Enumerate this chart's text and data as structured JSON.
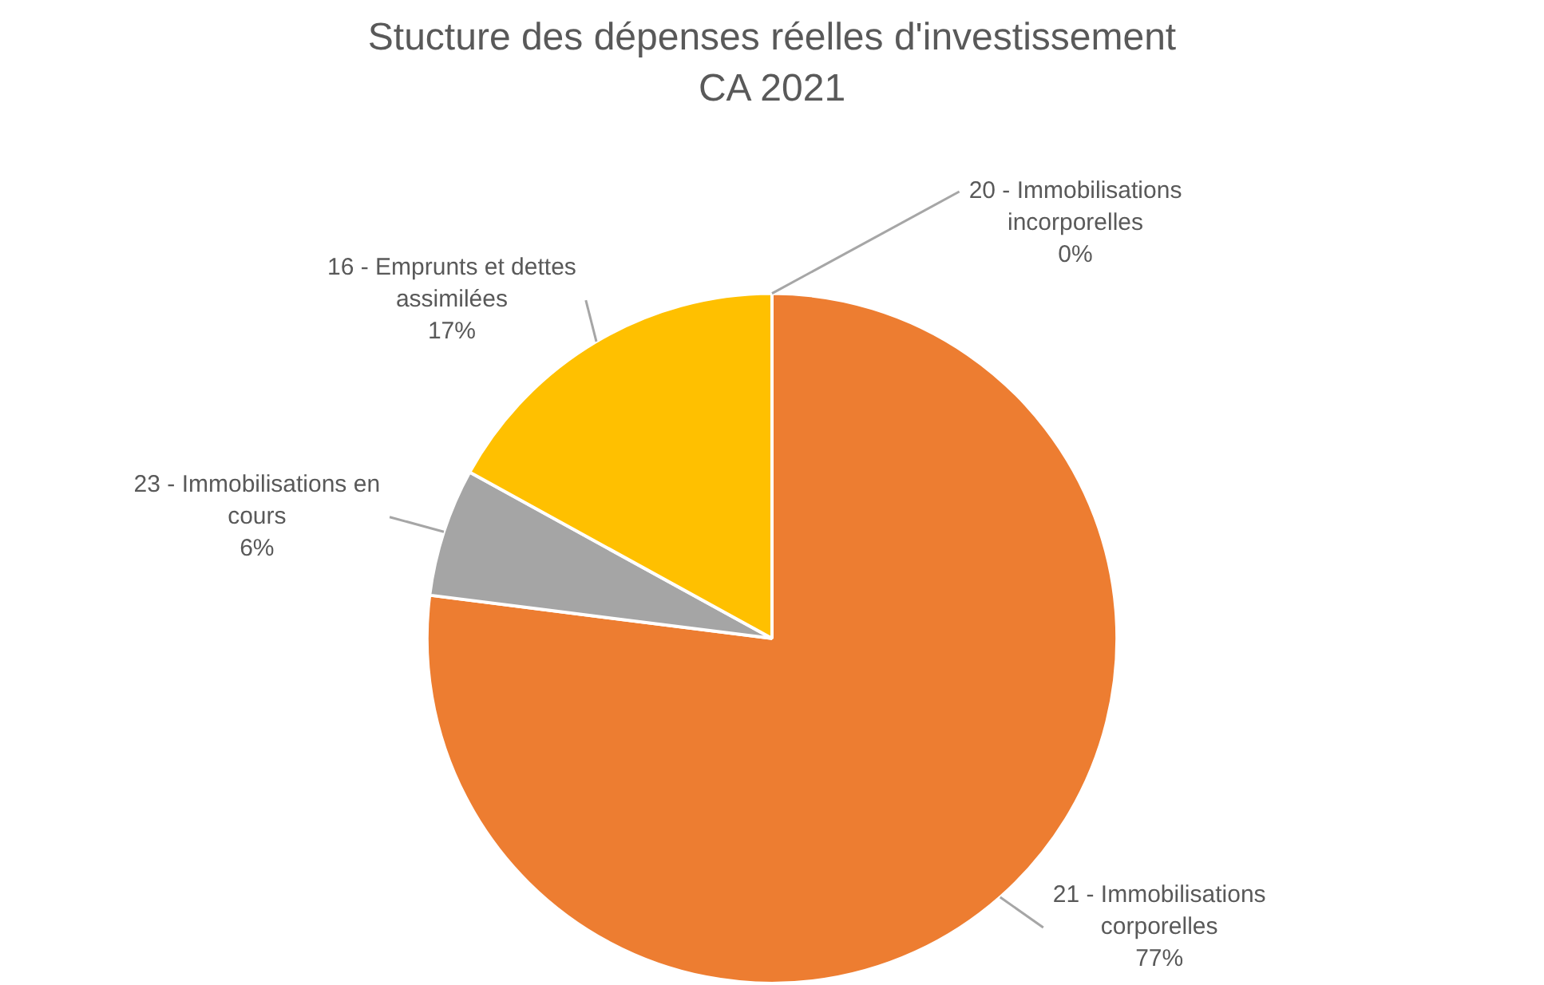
{
  "chart_data": {
    "type": "pie",
    "title": "Stucture des dépenses réelles d'investissement",
    "subtitle": "CA 2021",
    "categories": [
      "20 - Immobilisations incorporelles",
      "21 - Immobilisations corporelles",
      "23 - Immobilisations en cours",
      "16 - Emprunts et dettes assimilées"
    ],
    "values": [
      0,
      77,
      6,
      17
    ],
    "colors": [
      "#4472c4",
      "#ed7d31",
      "#a5a5a5",
      "#ffc000"
    ],
    "value_labels": [
      "0%",
      "77%",
      "6%",
      "17%"
    ]
  }
}
